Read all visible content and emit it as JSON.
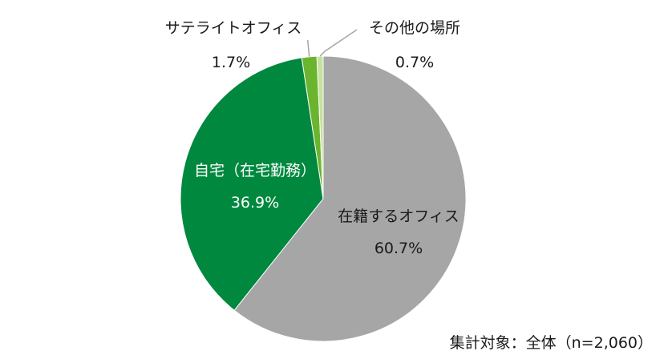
{
  "chart_data": {
    "type": "pie",
    "start_angle_deg": 0,
    "direction": "clockwise",
    "slices": [
      {
        "label": "在籍するオフィス",
        "value": 60.7,
        "value_label": "60.7%",
        "color": "#a6a6a6",
        "label_color": "#1a1a1a"
      },
      {
        "label": "自宅（在宅勤務）",
        "value": 36.9,
        "value_label": "36.9%",
        "color": "#00883f",
        "label_color": "#ffffff"
      },
      {
        "label": "サテライトオフィス",
        "value": 1.7,
        "value_label": "1.7%",
        "color": "#6ab52d",
        "label_color": "#1a1a1a"
      },
      {
        "label": "その他の場所",
        "value": 0.7,
        "value_label": "0.7%",
        "color": "#c4e29b",
        "label_color": "#1a1a1a"
      }
    ]
  },
  "note": "集計対象：全体（n=2,060）"
}
